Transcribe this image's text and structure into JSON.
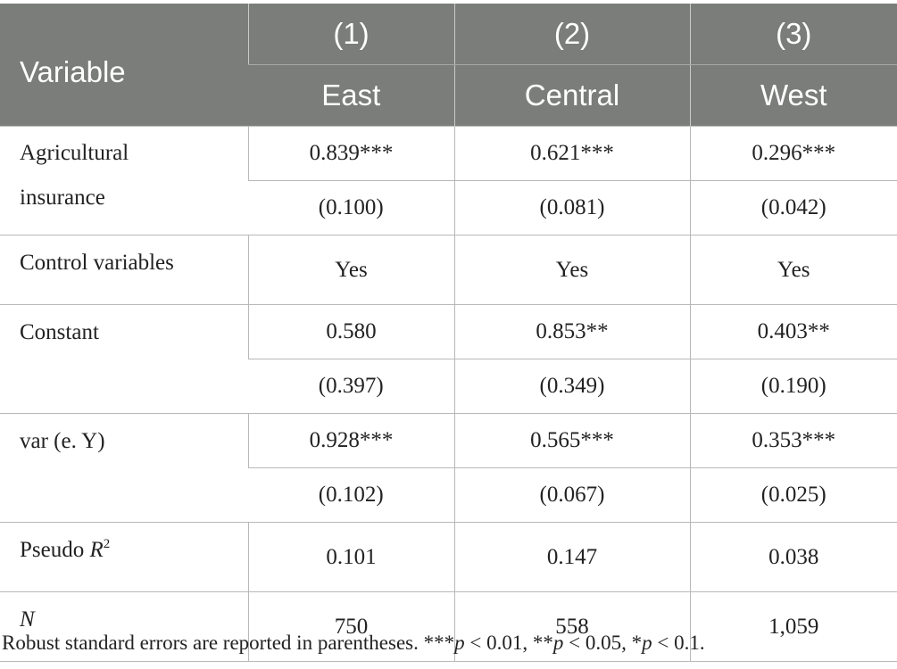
{
  "header": {
    "variable_label": "Variable",
    "columns": [
      {
        "number": "(1)",
        "region": "East"
      },
      {
        "number": "(2)",
        "region": "Central"
      },
      {
        "number": "(3)",
        "region": "West"
      }
    ]
  },
  "rows": {
    "agri_insurance": {
      "label_line1": "Agricultural",
      "label_line2": "insurance",
      "coef": [
        "0.839***",
        "0.621***",
        "0.296***"
      ],
      "se": [
        "(0.100)",
        "(0.081)",
        "(0.042)"
      ]
    },
    "controls": {
      "label": "Control variables",
      "values": [
        "Yes",
        "Yes",
        "Yes"
      ]
    },
    "constant": {
      "label": "Constant",
      "coef": [
        "0.580",
        "0.853**",
        "0.403**"
      ],
      "se": [
        "(0.397)",
        "(0.349)",
        "(0.190)"
      ]
    },
    "var_ey": {
      "label": "var (e. Y)",
      "coef": [
        "0.928***",
        "0.565***",
        "0.353***"
      ],
      "se": [
        "(0.102)",
        "(0.067)",
        "(0.025)"
      ]
    },
    "pseudo_r2": {
      "label_text": "Pseudo ",
      "label_var": "R",
      "label_sup": "2",
      "values": [
        "0.101",
        "0.147",
        "0.038"
      ]
    },
    "n": {
      "label": "N",
      "values": [
        "750",
        "558",
        "1,059"
      ]
    }
  },
  "note": {
    "prefix": "Robust standard errors are reported in parentheses. ***",
    "p1": "p",
    "t1": " < 0.01, **",
    "p2": "p",
    "t2": " < 0.05, *",
    "p3": "p",
    "t3": " < 0.1."
  }
}
